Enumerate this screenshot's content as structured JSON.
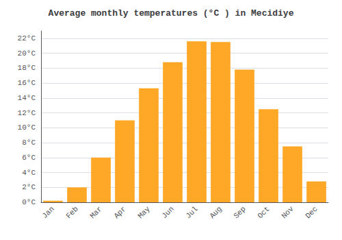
{
  "chart_data": {
    "type": "bar",
    "title": "Average monthly temperatures (°C ) in Mecidiye",
    "categories": [
      "Jan",
      "Feb",
      "Mar",
      "Apr",
      "May",
      "Jun",
      "Jul",
      "Aug",
      "Sep",
      "Oct",
      "Nov",
      "Dec"
    ],
    "values": [
      0.2,
      2.0,
      6.0,
      11.0,
      15.3,
      18.8,
      21.6,
      21.5,
      17.8,
      12.5,
      7.5,
      2.8
    ],
    "color": "#FFA726",
    "ylim": [
      0,
      23
    ],
    "yticks": [
      {
        "value": 0,
        "label": "0°C"
      },
      {
        "value": 2,
        "label": "2°C"
      },
      {
        "value": 4,
        "label": "4°C"
      },
      {
        "value": 6,
        "label": "6°C"
      },
      {
        "value": 8,
        "label": "8°C"
      },
      {
        "value": 10,
        "label": "10°C"
      },
      {
        "value": 12,
        "label": "12°C"
      },
      {
        "value": 14,
        "label": "14°C"
      },
      {
        "value": 16,
        "label": "16°C"
      },
      {
        "value": 18,
        "label": "18°C"
      },
      {
        "value": 20,
        "label": "20°C"
      },
      {
        "value": 22,
        "label": "22°C"
      }
    ],
    "grid": true
  }
}
